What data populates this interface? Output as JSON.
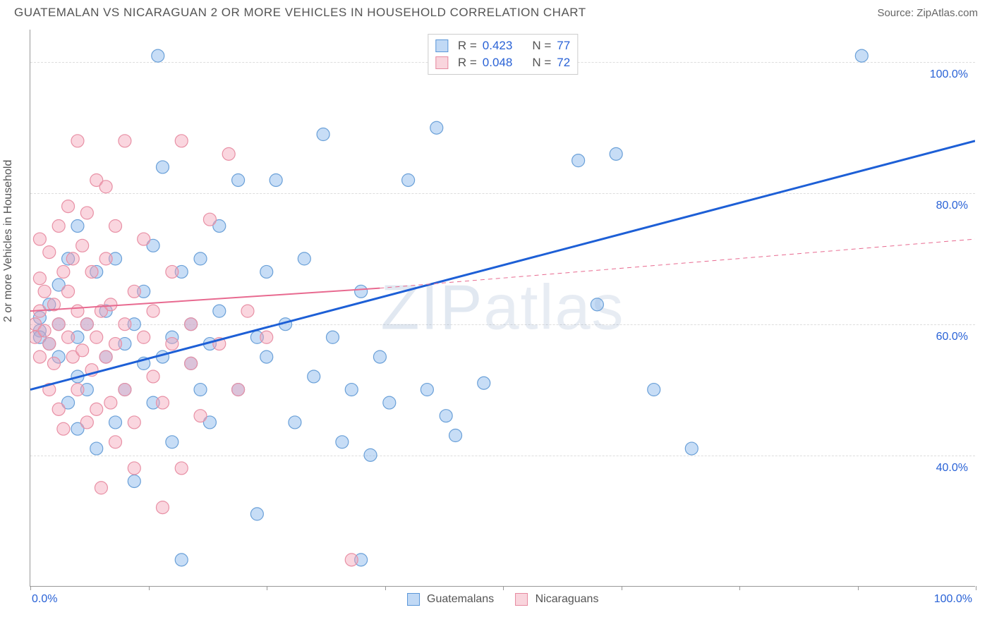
{
  "header": {
    "title": "GUATEMALAN VS NICARAGUAN 2 OR MORE VEHICLES IN HOUSEHOLD CORRELATION CHART",
    "source": "Source: ZipAtlas.com"
  },
  "chart": {
    "type": "scatter",
    "y_label": "2 or more Vehicles in Household",
    "background_color": "#ffffff",
    "grid_color": "#dddddd",
    "axis_color": "#999999",
    "tick_label_color": "#2962d6",
    "tick_fontsize": 16,
    "xlim": [
      0,
      100
    ],
    "ylim": [
      20,
      105
    ],
    "x_ticks": [
      0,
      12.5,
      25,
      37.5,
      50,
      62.5,
      75,
      87.5,
      100
    ],
    "x_tick_labels": {
      "0": "0.0%",
      "100": "100.0%"
    },
    "y_gridlines": [
      40,
      60,
      80,
      100
    ],
    "y_tick_labels": {
      "40": "40.0%",
      "60": "60.0%",
      "80": "80.0%",
      "100": "100.0%"
    },
    "watermark": "ZIPatlas",
    "series": [
      {
        "name": "Guatemalans",
        "color_fill": "rgba(130,180,235,0.45)",
        "color_stroke": "#6aa0d8",
        "marker_radius": 9,
        "trend": {
          "color": "#1d5fd6",
          "width": 3,
          "x0": 0,
          "y0": 50,
          "x1": 100,
          "y1": 88,
          "dash": null
        },
        "points": [
          [
            1,
            59
          ],
          [
            1,
            61
          ],
          [
            1,
            58
          ],
          [
            2,
            57
          ],
          [
            2,
            63
          ],
          [
            3,
            60
          ],
          [
            3,
            55
          ],
          [
            3,
            66
          ],
          [
            4,
            48
          ],
          [
            4,
            70
          ],
          [
            5,
            52
          ],
          [
            5,
            58
          ],
          [
            5,
            44
          ],
          [
            5,
            75
          ],
          [
            6,
            60
          ],
          [
            6,
            50
          ],
          [
            7,
            68
          ],
          [
            7,
            41
          ],
          [
            8,
            55
          ],
          [
            8,
            62
          ],
          [
            9,
            70
          ],
          [
            9,
            45
          ],
          [
            10,
            50
          ],
          [
            10,
            57
          ],
          [
            11,
            60
          ],
          [
            11,
            36
          ],
          [
            12,
            54
          ],
          [
            12,
            65
          ],
          [
            13,
            48
          ],
          [
            13,
            72
          ],
          [
            14,
            55
          ],
          [
            14,
            84
          ],
          [
            15,
            58
          ],
          [
            15,
            42
          ],
          [
            16,
            68
          ],
          [
            16,
            24
          ],
          [
            17,
            54
          ],
          [
            17,
            60
          ],
          [
            18,
            70
          ],
          [
            18,
            50
          ],
          [
            19,
            57
          ],
          [
            19,
            45
          ],
          [
            20,
            62
          ],
          [
            20,
            75
          ],
          [
            22,
            50
          ],
          [
            22,
            82
          ],
          [
            24,
            58
          ],
          [
            24,
            31
          ],
          [
            25,
            68
          ],
          [
            25,
            55
          ],
          [
            26,
            82
          ],
          [
            27,
            60
          ],
          [
            28,
            45
          ],
          [
            29,
            70
          ],
          [
            30,
            52
          ],
          [
            31,
            89
          ],
          [
            32,
            58
          ],
          [
            33,
            42
          ],
          [
            34,
            50
          ],
          [
            35,
            65
          ],
          [
            35,
            24
          ],
          [
            36,
            40
          ],
          [
            37,
            55
          ],
          [
            38,
            48
          ],
          [
            40,
            82
          ],
          [
            42,
            50
          ],
          [
            43,
            90
          ],
          [
            44,
            46
          ],
          [
            45,
            43
          ],
          [
            48,
            51
          ],
          [
            58,
            85
          ],
          [
            60,
            63
          ],
          [
            62,
            86
          ],
          [
            66,
            50
          ],
          [
            70,
            41
          ],
          [
            88,
            101
          ],
          [
            13.5,
            101
          ]
        ]
      },
      {
        "name": "Nicaraguans",
        "color_fill": "rgba(245,165,185,0.45)",
        "color_stroke": "#e890a5",
        "marker_radius": 9,
        "trend": {
          "color": "#e86a90",
          "width": 2,
          "x0": 0,
          "y0": 62,
          "x1": 37,
          "y1": 65.5,
          "dash": null
        },
        "trend_ext": {
          "color": "#e86a90",
          "width": 1,
          "x0": 37,
          "y0": 65.5,
          "x1": 100,
          "y1": 73,
          "dash": "6,5"
        },
        "points": [
          [
            0.5,
            60
          ],
          [
            0.5,
            58
          ],
          [
            1,
            62
          ],
          [
            1,
            55
          ],
          [
            1,
            67
          ],
          [
            1,
            73
          ],
          [
            1.5,
            59
          ],
          [
            1.5,
            65
          ],
          [
            2,
            50
          ],
          [
            2,
            57
          ],
          [
            2,
            71
          ],
          [
            2.5,
            54
          ],
          [
            2.5,
            63
          ],
          [
            3,
            47
          ],
          [
            3,
            60
          ],
          [
            3,
            75
          ],
          [
            3.5,
            68
          ],
          [
            3.5,
            44
          ],
          [
            4,
            58
          ],
          [
            4,
            65
          ],
          [
            4,
            78
          ],
          [
            4.5,
            55
          ],
          [
            4.5,
            70
          ],
          [
            5,
            50
          ],
          [
            5,
            62
          ],
          [
            5,
            88
          ],
          [
            5.5,
            56
          ],
          [
            5.5,
            72
          ],
          [
            6,
            45
          ],
          [
            6,
            60
          ],
          [
            6,
            77
          ],
          [
            6.5,
            53
          ],
          [
            6.5,
            68
          ],
          [
            7,
            58
          ],
          [
            7,
            47
          ],
          [
            7,
            82
          ],
          [
            7.5,
            62
          ],
          [
            7.5,
            35
          ],
          [
            8,
            55
          ],
          [
            8,
            70
          ],
          [
            8,
            81
          ],
          [
            8.5,
            48
          ],
          [
            8.5,
            63
          ],
          [
            9,
            57
          ],
          [
            9,
            75
          ],
          [
            9,
            42
          ],
          [
            10,
            60
          ],
          [
            10,
            50
          ],
          [
            10,
            88
          ],
          [
            11,
            65
          ],
          [
            11,
            45
          ],
          [
            11,
            38
          ],
          [
            12,
            58
          ],
          [
            12,
            73
          ],
          [
            13,
            52
          ],
          [
            13,
            62
          ],
          [
            14,
            48
          ],
          [
            14,
            32
          ],
          [
            15,
            57
          ],
          [
            15,
            68
          ],
          [
            16,
            38
          ],
          [
            16,
            88
          ],
          [
            17,
            54
          ],
          [
            17,
            60
          ],
          [
            18,
            46
          ],
          [
            19,
            76
          ],
          [
            20,
            57
          ],
          [
            21,
            86
          ],
          [
            22,
            50
          ],
          [
            23,
            62
          ],
          [
            25,
            58
          ],
          [
            34,
            24
          ]
        ]
      }
    ],
    "legend_top": [
      {
        "swatch": "blue",
        "r_label": "R =",
        "r_value": "0.423",
        "n_label": "N =",
        "n_value": "77"
      },
      {
        "swatch": "pink",
        "r_label": "R =",
        "r_value": "0.048",
        "n_label": "N =",
        "n_value": "72"
      }
    ],
    "legend_bottom": [
      {
        "swatch": "blue",
        "label": "Guatemalans"
      },
      {
        "swatch": "pink",
        "label": "Nicaraguans"
      }
    ]
  }
}
